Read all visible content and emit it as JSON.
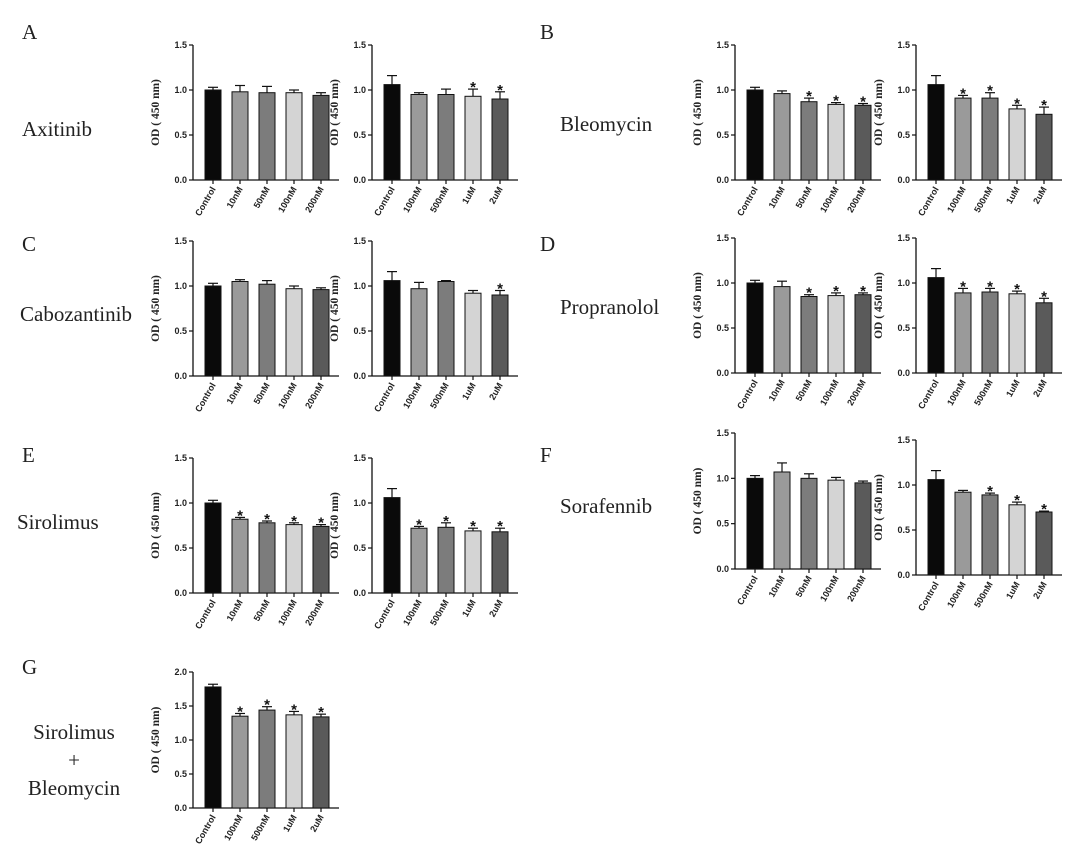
{
  "panels": [
    {
      "letter": "A",
      "drug": "Axitinib"
    },
    {
      "letter": "B",
      "drug": "Bleomycin"
    },
    {
      "letter": "C",
      "drug": "Cabozantinib"
    },
    {
      "letter": "D",
      "drug": "Propranolol"
    },
    {
      "letter": "E",
      "drug": "Sirolimus"
    },
    {
      "letter": "F",
      "drug": "Sorafennib"
    },
    {
      "letter": "G",
      "drug_lines": [
        "Sirolimus",
        "+",
        "Bleomycin"
      ]
    }
  ],
  "colors": [
    "#0a0a0a",
    "#9a9a9a",
    "#7c7c7c",
    "#d4d4d4",
    "#5a5a5a"
  ],
  "chart_data": [
    {
      "type": "bar",
      "panel": "A",
      "ylabel": "OD ( 450 nm)",
      "ylim": [
        0,
        1.5
      ],
      "yticks": [
        "0.0",
        "0.5",
        "1.0",
        "1.5"
      ],
      "categories": [
        "Control",
        "10nM",
        "50nM",
        "100nM",
        "200nM"
      ],
      "values": [
        1.0,
        0.98,
        0.97,
        0.97,
        0.94
      ],
      "errors": [
        0.03,
        0.07,
        0.07,
        0.03,
        0.03
      ],
      "significant": [
        false,
        false,
        false,
        false,
        false
      ]
    },
    {
      "type": "bar",
      "panel": "A",
      "ylabel": "OD ( 450 nm)",
      "ylim": [
        0,
        1.5
      ],
      "yticks": [
        "0.0",
        "0.5",
        "1.0",
        "1.5"
      ],
      "categories": [
        "Control",
        "100nM",
        "500nM",
        "1uM",
        "2uM"
      ],
      "values": [
        1.06,
        0.95,
        0.95,
        0.93,
        0.9
      ],
      "errors": [
        0.1,
        0.02,
        0.06,
        0.08,
        0.08
      ],
      "significant": [
        false,
        false,
        false,
        true,
        true
      ]
    },
    {
      "type": "bar",
      "panel": "B",
      "ylabel": "OD ( 450 nm)",
      "ylim": [
        0,
        1.5
      ],
      "yticks": [
        "0.0",
        "0.5",
        "1.0",
        "1.5"
      ],
      "categories": [
        "Control",
        "10nM",
        "50nM",
        "100nM",
        "200nM"
      ],
      "values": [
        1.0,
        0.96,
        0.87,
        0.84,
        0.83
      ],
      "errors": [
        0.03,
        0.03,
        0.04,
        0.02,
        0.02
      ],
      "significant": [
        false,
        false,
        true,
        true,
        true
      ]
    },
    {
      "type": "bar",
      "panel": "B",
      "ylabel": "OD ( 450 nm)",
      "ylim": [
        0,
        1.5
      ],
      "yticks": [
        "0.0",
        "0.5",
        "1.0",
        "1.5"
      ],
      "categories": [
        "Control",
        "100nM",
        "500nM",
        "1uM",
        "2uM"
      ],
      "values": [
        1.06,
        0.91,
        0.91,
        0.79,
        0.73
      ],
      "errors": [
        0.1,
        0.03,
        0.06,
        0.04,
        0.08
      ],
      "significant": [
        false,
        true,
        true,
        true,
        true
      ]
    },
    {
      "type": "bar",
      "panel": "C",
      "ylabel": "OD ( 450 nm)",
      "ylim": [
        0,
        1.5
      ],
      "yticks": [
        "0.0",
        "0.5",
        "1.0",
        "1.5"
      ],
      "categories": [
        "Control",
        "10nM",
        "50nM",
        "100nM",
        "200nM"
      ],
      "values": [
        1.0,
        1.05,
        1.02,
        0.97,
        0.96
      ],
      "errors": [
        0.03,
        0.02,
        0.04,
        0.03,
        0.02
      ],
      "significant": [
        false,
        false,
        false,
        false,
        false
      ]
    },
    {
      "type": "bar",
      "panel": "C",
      "ylabel": "OD ( 450 nm)",
      "ylim": [
        0,
        1.5
      ],
      "yticks": [
        "0.0",
        "0.5",
        "1.0",
        "1.5"
      ],
      "categories": [
        "Control",
        "100nM",
        "500nM",
        "1uM",
        "2uM"
      ],
      "values": [
        1.06,
        0.97,
        1.05,
        0.92,
        0.9
      ],
      "errors": [
        0.1,
        0.07,
        0.01,
        0.03,
        0.05
      ],
      "significant": [
        false,
        false,
        false,
        false,
        true
      ]
    },
    {
      "type": "bar",
      "panel": "D",
      "ylabel": "OD ( 450 nm)",
      "ylim": [
        0,
        1.5
      ],
      "yticks": [
        "0.0",
        "0.5",
        "1.0",
        "1.5"
      ],
      "categories": [
        "Control",
        "10nM",
        "50nM",
        "100nM",
        "200nM"
      ],
      "values": [
        1.0,
        0.96,
        0.85,
        0.86,
        0.87
      ],
      "errors": [
        0.03,
        0.06,
        0.02,
        0.03,
        0.02
      ],
      "significant": [
        false,
        false,
        true,
        true,
        true
      ]
    },
    {
      "type": "bar",
      "panel": "D",
      "ylabel": "OD ( 450 nm)",
      "ylim": [
        0,
        1.5
      ],
      "yticks": [
        "0.0",
        "0.5",
        "1.0",
        "1.5"
      ],
      "categories": [
        "Control",
        "100nM",
        "500nM",
        "1uM",
        "2uM"
      ],
      "values": [
        1.06,
        0.89,
        0.9,
        0.88,
        0.78
      ],
      "errors": [
        0.1,
        0.05,
        0.04,
        0.03,
        0.05
      ],
      "significant": [
        false,
        true,
        true,
        true,
        true
      ]
    },
    {
      "type": "bar",
      "panel": "E",
      "ylabel": "OD ( 450 nm)",
      "ylim": [
        0,
        1.5
      ],
      "yticks": [
        "0.0",
        "0.5",
        "1.0",
        "1.5"
      ],
      "categories": [
        "Control",
        "10nM",
        "50nM",
        "100nM",
        "200nM"
      ],
      "values": [
        1.0,
        0.82,
        0.78,
        0.76,
        0.74
      ],
      "errors": [
        0.03,
        0.02,
        0.02,
        0.02,
        0.02
      ],
      "significant": [
        false,
        true,
        true,
        true,
        true
      ]
    },
    {
      "type": "bar",
      "panel": "E",
      "ylabel": "OD ( 450 nm)",
      "ylim": [
        0,
        1.5
      ],
      "yticks": [
        "0.0",
        "0.5",
        "1.0",
        "1.5"
      ],
      "categories": [
        "Control",
        "100nM",
        "500nM",
        "1uM",
        "2uM"
      ],
      "values": [
        1.06,
        0.72,
        0.73,
        0.69,
        0.68
      ],
      "errors": [
        0.1,
        0.02,
        0.05,
        0.03,
        0.04
      ],
      "significant": [
        false,
        true,
        true,
        true,
        true
      ]
    },
    {
      "type": "bar",
      "panel": "F",
      "ylabel": "OD ( 450 nm)",
      "ylim": [
        0,
        1.5
      ],
      "yticks": [
        "0.0",
        "0.5",
        "1.0",
        "1.5"
      ],
      "categories": [
        "Control",
        "10nM",
        "50nM",
        "100nM",
        "200nM"
      ],
      "values": [
        1.0,
        1.07,
        1.0,
        0.98,
        0.95
      ],
      "errors": [
        0.03,
        0.1,
        0.05,
        0.03,
        0.02
      ],
      "significant": [
        false,
        false,
        false,
        false,
        false
      ]
    },
    {
      "type": "bar",
      "panel": "F",
      "ylabel": "OD ( 450 nm)",
      "ylim": [
        0,
        1.5
      ],
      "yticks": [
        "0.0",
        "0.5",
        "1.0",
        "1.5"
      ],
      "categories": [
        "Control",
        "100nM",
        "500nM",
        "1uM",
        "2uM"
      ],
      "values": [
        1.06,
        0.92,
        0.89,
        0.78,
        0.7
      ],
      "errors": [
        0.1,
        0.02,
        0.02,
        0.03,
        0.01
      ],
      "significant": [
        false,
        false,
        true,
        true,
        true
      ]
    },
    {
      "type": "bar",
      "panel": "G",
      "ylabel": "OD ( 450 nm)",
      "ylim": [
        0,
        2.0
      ],
      "yticks": [
        "0.0",
        "0.5",
        "1.0",
        "1.5",
        "2.0"
      ],
      "categories": [
        "Control",
        "100nM",
        "500nM",
        "1uM",
        "2uM"
      ],
      "values": [
        1.78,
        1.35,
        1.44,
        1.37,
        1.34
      ],
      "errors": [
        0.04,
        0.04,
        0.05,
        0.05,
        0.04
      ],
      "significant": [
        false,
        true,
        true,
        true,
        true
      ]
    }
  ]
}
